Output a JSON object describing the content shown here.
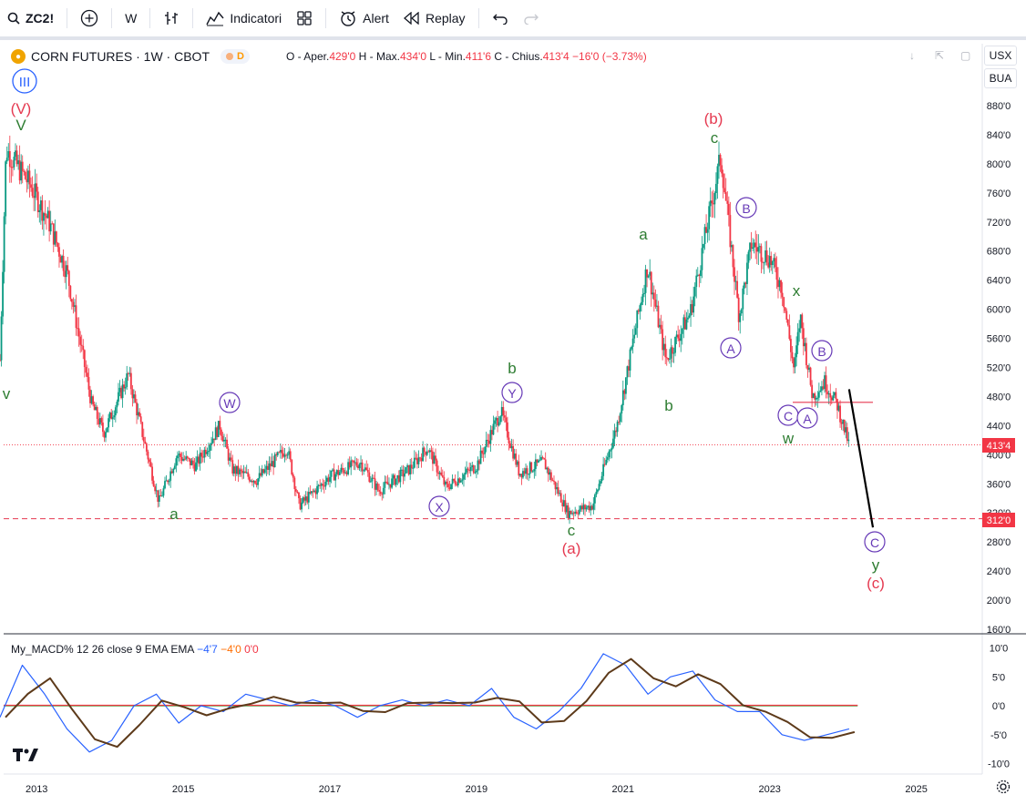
{
  "toolbar": {
    "symbol": "ZC2!",
    "interval": "W",
    "indicators_label": "Indicatori",
    "alert_label": "Alert",
    "replay_label": "Replay"
  },
  "legend": {
    "title": "CORN FUTURES · 1W · CBOT",
    "d_badge": "D",
    "o_label": "O - Aper.",
    "o_value": "429'0",
    "h_label": "H - Max.",
    "h_value": "434'0",
    "l_label": "L - Min.",
    "l_value": "411'6",
    "c_label": "C - Chius.",
    "c_value": "413'4",
    "change": "−16'0 (−3.73%)"
  },
  "scale_buttons": {
    "currency": "USX",
    "unit": "BUA"
  },
  "macd_legend": {
    "name": "My_MACD% 12 26 close 9 EMA EMA",
    "v1": "−4'7",
    "v2": "−4'0",
    "v3": "0'0"
  },
  "price_axis": [
    "880'0",
    "840'0",
    "800'0",
    "760'0",
    "720'0",
    "680'0",
    "640'0",
    "600'0",
    "560'0",
    "520'0",
    "480'0",
    "440'0",
    "400'0",
    "360'0",
    "320'0",
    "280'0",
    "240'0",
    "200'0",
    "160'0"
  ],
  "price_tags": {
    "last": "413'4",
    "level": "312'0"
  },
  "macd_axis": [
    "10'0",
    "5'0",
    "0'0",
    "-5'0",
    "-10'0"
  ],
  "time_axis": [
    "2013",
    "2015",
    "2017",
    "2019",
    "2021",
    "2023",
    "2025"
  ],
  "wave_labels": {
    "III": "III",
    "V_big": "(V)",
    "V_small": "V",
    "v_left": "v",
    "a1": "a",
    "W": "W",
    "X": "X",
    "Y": "Y",
    "b1": "b",
    "c1": "c",
    "a_paren": "(a)",
    "a2": "a",
    "b2": "b",
    "c2": "c",
    "b_paren": "(b)",
    "A1": "A",
    "B1": "B",
    "x": "x",
    "w": "w",
    "C1": "C",
    "A2": "A",
    "B2": "B",
    "C2": "C",
    "y": "y",
    "c_paren": "(c)"
  },
  "colors": {
    "up": "#089981",
    "down": "#f23645",
    "accent": "#2962ff",
    "wave_green": "#2e7d32",
    "wave_red": "#e53950",
    "wave_purple": "#673ab7",
    "macd_line": "#2962ff",
    "signal_line": "#5d3a1a"
  },
  "chart_data": {
    "type": "candlestick",
    "title": "CORN FUTURES · 1W · CBOT",
    "ylim": [
      160,
      880
    ],
    "series": [
      {
        "name": "ZC2!",
        "points": [
          [
            "2012-07",
            530
          ],
          [
            "2012-08",
            820
          ],
          [
            "2012-12",
            770
          ],
          [
            "2013-03",
            720
          ],
          [
            "2013-06",
            650
          ],
          [
            "2013-08",
            560
          ],
          [
            "2013-10",
            470
          ],
          [
            "2013-12",
            430
          ],
          [
            "2014-04",
            510
          ],
          [
            "2014-06",
            440
          ],
          [
            "2014-09",
            335
          ],
          [
            "2014-12",
            400
          ],
          [
            "2015-03",
            385
          ],
          [
            "2015-07",
            440
          ],
          [
            "2015-09",
            380
          ],
          [
            "2016-01",
            365
          ],
          [
            "2016-06",
            410
          ],
          [
            "2016-08",
            330
          ],
          [
            "2017-01",
            370
          ],
          [
            "2017-06",
            390
          ],
          [
            "2017-09",
            350
          ],
          [
            "2018-02",
            380
          ],
          [
            "2018-05",
            410
          ],
          [
            "2018-08",
            355
          ],
          [
            "2019-01",
            385
          ],
          [
            "2019-05",
            460
          ],
          [
            "2019-08",
            375
          ],
          [
            "2019-12",
            390
          ],
          [
            "2020-04",
            320
          ],
          [
            "2020-08",
            330
          ],
          [
            "2020-12",
            440
          ],
          [
            "2021-05",
            660
          ],
          [
            "2021-08",
            530
          ],
          [
            "2021-12",
            595
          ],
          [
            "2022-05",
            810
          ],
          [
            "2022-08",
            590
          ],
          [
            "2022-10",
            690
          ],
          [
            "2023-01",
            670
          ],
          [
            "2023-03",
            630
          ],
          [
            "2023-05",
            515
          ],
          [
            "2023-06",
            590
          ],
          [
            "2023-08",
            480
          ],
          [
            "2023-10",
            500
          ],
          [
            "2023-12",
            470
          ],
          [
            "2024-02",
            413
          ]
        ]
      }
    ],
    "projection": {
      "from": [
        "2024-02",
        490
      ],
      "to": [
        "2024-08",
        300
      ]
    },
    "hline": 312,
    "macd": {
      "values": [
        -2,
        7,
        2,
        -4,
        -8,
        -6,
        0,
        2,
        -3,
        0,
        -1,
        2,
        1,
        0,
        1,
        0,
        -2,
        0,
        1,
        0,
        1,
        0,
        3,
        -2,
        -4,
        -1,
        3,
        9,
        7,
        2,
        5,
        6,
        1,
        -1,
        -1,
        -5,
        -6,
        -5,
        -4
      ]
    }
  }
}
